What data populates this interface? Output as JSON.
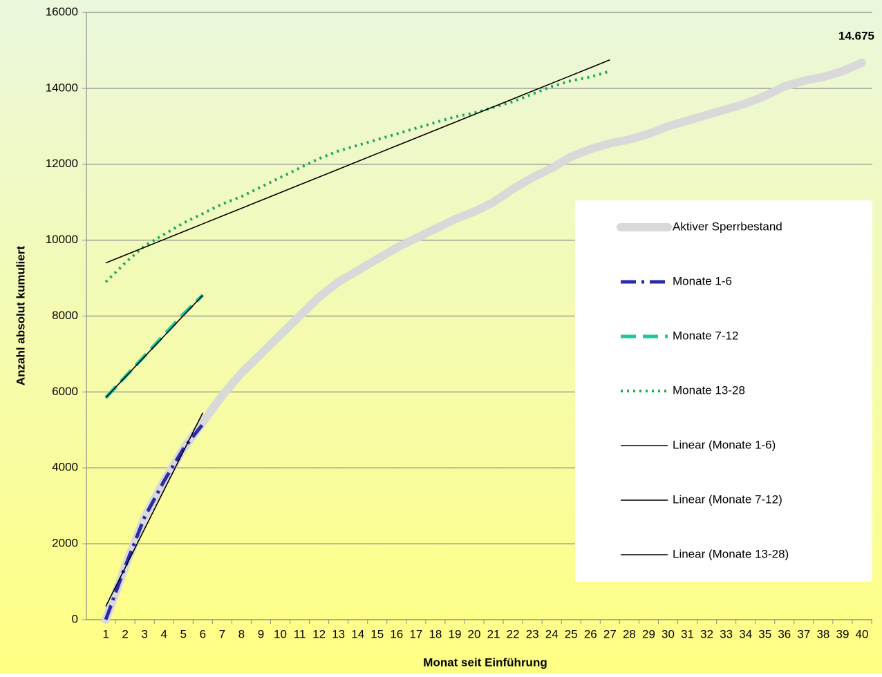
{
  "chart_data": {
    "type": "line",
    "x_label": "Monat seit Einführung",
    "y_label": "Anzahl absolut kumuliert",
    "categories": [
      "1",
      "2",
      "3",
      "4",
      "5",
      "6",
      "7",
      "8",
      "9",
      "10",
      "11",
      "12",
      "13",
      "14",
      "15",
      "16",
      "17",
      "18",
      "19",
      "20",
      "21",
      "22",
      "23",
      "24",
      "25",
      "26",
      "27",
      "28",
      "29",
      "30",
      "31",
      "32",
      "33",
      "34",
      "35",
      "36",
      "37",
      "38",
      "39",
      "40"
    ],
    "ylim": [
      0,
      16000
    ],
    "yticks": [
      0,
      2000,
      4000,
      6000,
      8000,
      10000,
      12000,
      14000,
      16000
    ],
    "grid": true,
    "legend": "right",
    "series": [
      {
        "name": "Aktiver Sperrbestand",
        "color": "#d9d9d9",
        "style": "thick",
        "values": [
          0,
          1400,
          2700,
          3650,
          4500,
          5200,
          5900,
          6500,
          7000,
          7500,
          8000,
          8500,
          8900,
          9200,
          9500,
          9800,
          10050,
          10300,
          10550,
          10750,
          11000,
          11350,
          11650,
          11900,
          12200,
          12400,
          12550,
          12650,
          12800,
          13000,
          13150,
          13300,
          13450,
          13600,
          13800,
          14050,
          14200,
          14300,
          14450,
          14675
        ],
        "value_labels": [
          null,
          null,
          null,
          null,
          null,
          null,
          null,
          null,
          null,
          null,
          null,
          null,
          null,
          null,
          null,
          null,
          null,
          null,
          null,
          null,
          null,
          null,
          null,
          null,
          null,
          null,
          null,
          null,
          null,
          null,
          null,
          null,
          null,
          null,
          null,
          null,
          null,
          null,
          null,
          "14.675"
        ]
      },
      {
        "name": "Monate 1-6",
        "color": "#2b2ba8",
        "style": "dash-dot",
        "values": [
          0,
          1400,
          2700,
          3650,
          4500,
          5150,
          null,
          null,
          null,
          null,
          null,
          null,
          null,
          null,
          null,
          null,
          null,
          null,
          null,
          null,
          null,
          null,
          null,
          null,
          null,
          null,
          null,
          null,
          null,
          null,
          null,
          null,
          null,
          null,
          null,
          null,
          null,
          null,
          null,
          null
        ]
      },
      {
        "name": "Monate 7-12",
        "color": "#1ec8a0",
        "style": "dashed",
        "values": [
          5850,
          6400,
          6950,
          7500,
          8050,
          8550,
          null,
          null,
          null,
          null,
          null,
          null,
          null,
          null,
          null,
          null,
          null,
          null,
          null,
          null,
          null,
          null,
          null,
          null,
          null,
          null,
          null,
          null,
          null,
          null,
          null,
          null,
          null,
          null,
          null,
          null,
          null,
          null,
          null,
          null
        ]
      },
      {
        "name": "Monate 13-28",
        "color": "#1fa855",
        "style": "dotted",
        "values": [
          8900,
          9400,
          9850,
          10150,
          10450,
          10700,
          10950,
          11150,
          11400,
          11650,
          11900,
          12150,
          12350,
          12500,
          12650,
          12800,
          12950,
          13100,
          13250,
          13350,
          13500,
          13650,
          13850,
          14050,
          14200,
          14300,
          14450,
          null,
          null,
          null,
          null,
          null,
          null,
          null,
          null,
          null,
          null,
          null,
          null,
          null
        ]
      },
      {
        "name": "Linear (Monate 1-6)",
        "color": "#000000",
        "style": "thin",
        "values": [
          350,
          1370,
          2390,
          3410,
          4430,
          5450,
          null,
          null,
          null,
          null,
          null,
          null,
          null,
          null,
          null,
          null,
          null,
          null,
          null,
          null,
          null,
          null,
          null,
          null,
          null,
          null,
          null,
          null,
          null,
          null,
          null,
          null,
          null,
          null,
          null,
          null,
          null,
          null,
          null,
          null
        ]
      },
      {
        "name": "Linear (Monate 7-12)",
        "color": "#000000",
        "style": "thin",
        "values": [
          5850,
          6390,
          6930,
          7470,
          8010,
          8550,
          null,
          null,
          null,
          null,
          null,
          null,
          null,
          null,
          null,
          null,
          null,
          null,
          null,
          null,
          null,
          null,
          null,
          null,
          null,
          null,
          null,
          null,
          null,
          null,
          null,
          null,
          null,
          null,
          null,
          null,
          null,
          null,
          null,
          null
        ]
      },
      {
        "name": "Linear (Monate 13-28)",
        "color": "#000000",
        "style": "thin",
        "values": [
          9400,
          9606,
          9812,
          10017,
          10223,
          10429,
          10635,
          10840,
          11046,
          11252,
          11458,
          11663,
          11869,
          12075,
          12281,
          12487,
          12692,
          12898,
          13104,
          13310,
          13515,
          13721,
          13927,
          14133,
          14338,
          14544,
          14750,
          null,
          null,
          null,
          null,
          null,
          null,
          null,
          null,
          null,
          null,
          null,
          null,
          null
        ]
      }
    ]
  }
}
